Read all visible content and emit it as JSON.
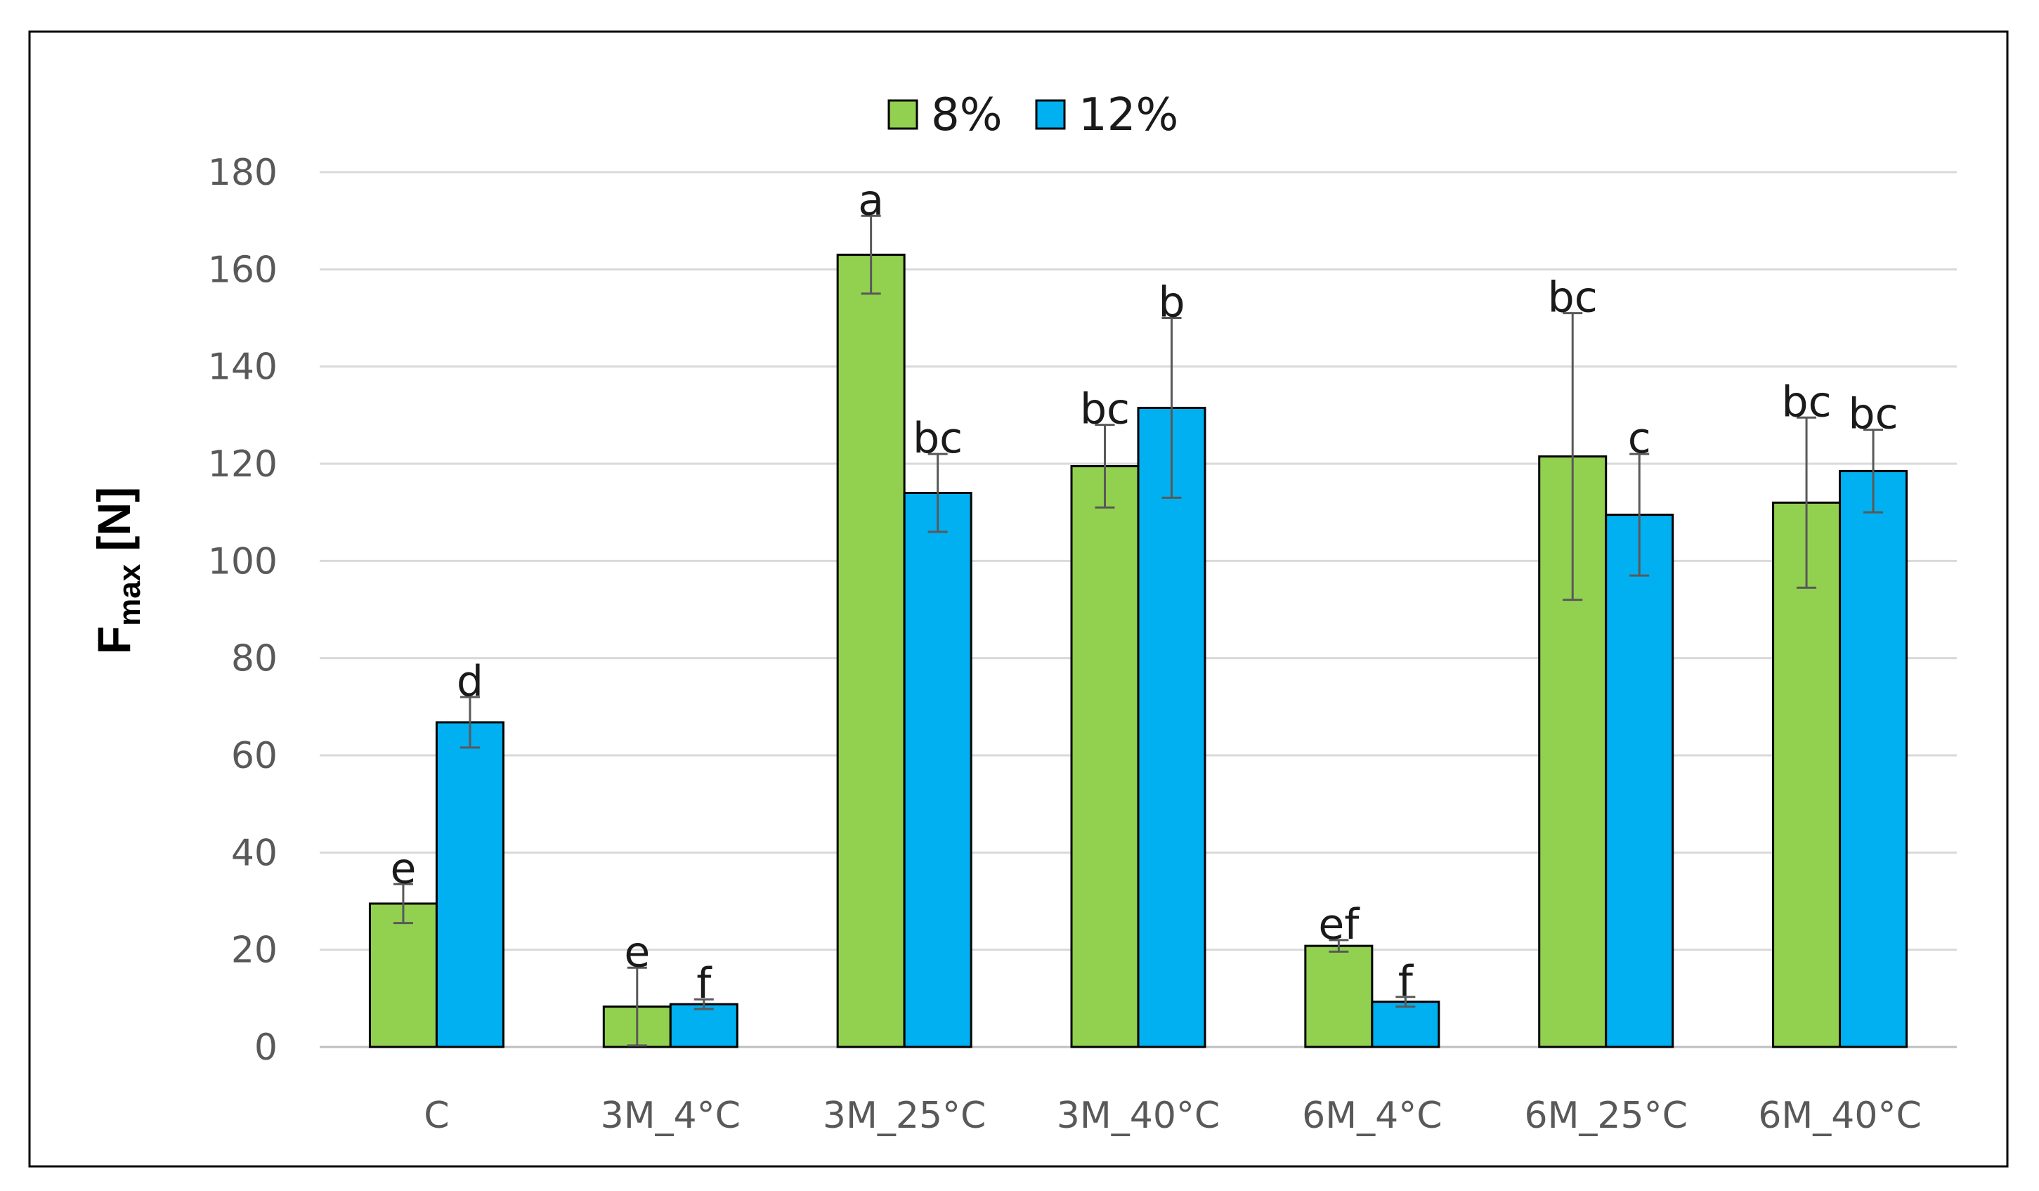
{
  "chart_data": {
    "type": "bar",
    "title": "",
    "xlabel": "",
    "ylabel": "F",
    "ylabel_subscript": "max",
    "ylabel_unit": " [N]",
    "ylim": [
      0,
      180
    ],
    "yticks": [
      0,
      20,
      40,
      60,
      80,
      100,
      120,
      140,
      160,
      180
    ],
    "grid": true,
    "legend_position": "top-center",
    "categories": [
      "C",
      "3M_4°C",
      "3M_25°C",
      "3M_40°C",
      "6M_4°C",
      "6M_25°C",
      "6M_40°C"
    ],
    "series": [
      {
        "name": "8%",
        "color": "#92D050",
        "values": [
          29.5,
          8.3,
          163,
          119.5,
          20.8,
          121.5,
          112
        ],
        "errors": [
          4,
          8,
          8,
          8.5,
          1.2,
          29.5,
          17.5
        ],
        "labels": [
          "e",
          "e",
          "a",
          "bc",
          "ef",
          "bc",
          "bc"
        ]
      },
      {
        "name": "12%",
        "color": "#00B0F0",
        "values": [
          66.8,
          8.8,
          114,
          131.5,
          9.3,
          109.5,
          118.5
        ],
        "errors": [
          5.2,
          1,
          8,
          18.5,
          1,
          12.5,
          8.5
        ],
        "labels": [
          "d",
          "f",
          "bc",
          "b",
          "f",
          "c",
          "bc"
        ]
      }
    ]
  }
}
